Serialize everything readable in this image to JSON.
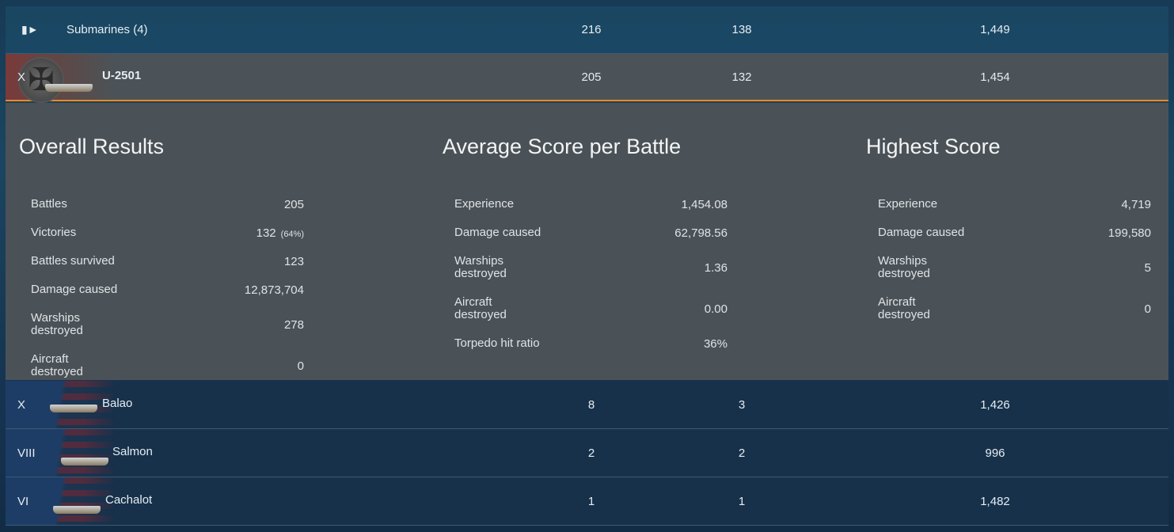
{
  "group": {
    "icon": "submarine-class-icon",
    "label": "Submarines (4)",
    "battles": "216",
    "victories": "138",
    "avg_xp": "1,449"
  },
  "selected": {
    "tier": "X",
    "name": "U-2501",
    "battles": "205",
    "victories": "132",
    "avg_xp": "1,454"
  },
  "details": {
    "overall": {
      "title": "Overall Results",
      "stats": [
        {
          "label": "Battles",
          "value": "205"
        },
        {
          "label": "Victories",
          "value": "132",
          "extra": "(64%)"
        },
        {
          "label": "Battles survived",
          "value": "123"
        },
        {
          "label": "Damage caused",
          "value": "12,873,704"
        },
        {
          "label": "Warships destroyed",
          "value": "278"
        },
        {
          "label": "Aircraft destroyed",
          "value": "0"
        }
      ]
    },
    "average": {
      "title": "Average Score per Battle",
      "stats": [
        {
          "label": "Experience",
          "value": "1,454.08"
        },
        {
          "label": "Damage caused",
          "value": "62,798.56"
        },
        {
          "label": "Warships destroyed",
          "value": "1.36"
        },
        {
          "label": "Aircraft destroyed",
          "value": "0.00"
        },
        {
          "label": "Torpedo hit ratio",
          "value": "36%"
        }
      ]
    },
    "highest": {
      "title": "Highest Score",
      "stats": [
        {
          "label": "Experience",
          "value": "4,719"
        },
        {
          "label": "Damage caused",
          "value": "199,580"
        },
        {
          "label": "Warships destroyed",
          "value": "5"
        },
        {
          "label": "Aircraft destroyed",
          "value": "0"
        }
      ]
    }
  },
  "ships": [
    {
      "tier": "X",
      "name": "Balao",
      "battles": "8",
      "victories": "3",
      "avg_xp": "1,426"
    },
    {
      "tier": "VIII",
      "name": "Salmon",
      "battles": "2",
      "victories": "2",
      "avg_xp": "996"
    },
    {
      "tier": "VI",
      "name": "Cachalot",
      "battles": "1",
      "victories": "1",
      "avg_xp": "1,482"
    }
  ],
  "colors": {
    "accent": "#f08a1c"
  }
}
